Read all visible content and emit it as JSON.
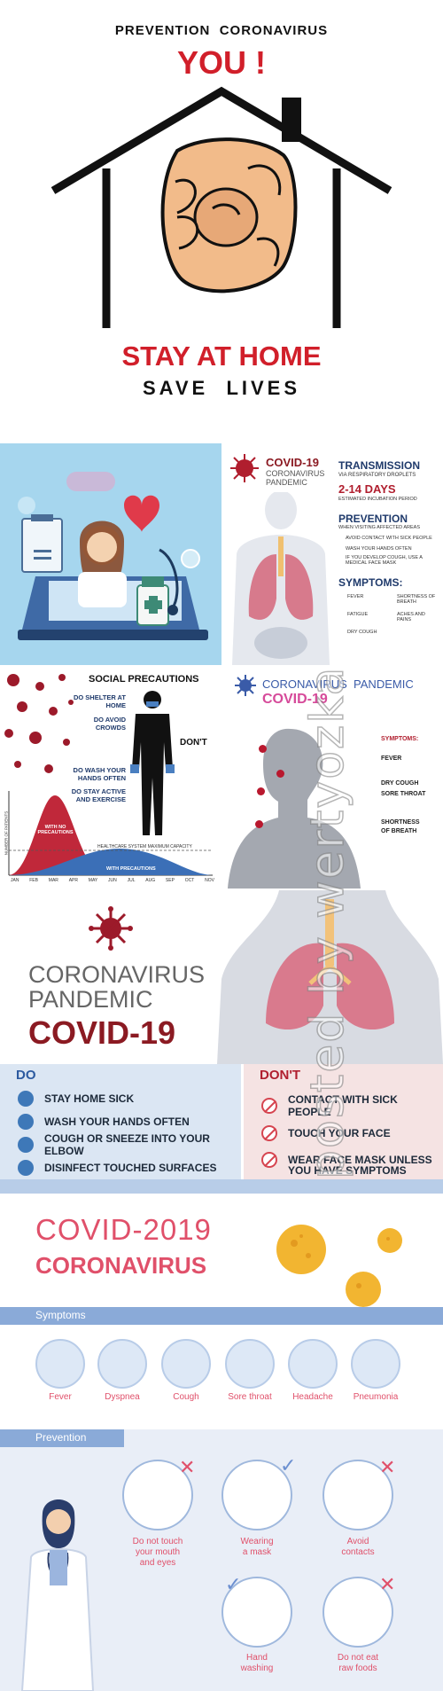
{
  "poster1": {
    "heading": "PREVENTION  CORONAVIRUS",
    "you": "YOU !",
    "stay": "STAY AT HOME",
    "save": "SAVE  LIVES"
  },
  "covid_card": {
    "title": "COVID-19",
    "subtitle1": "CORONAVIRUS",
    "subtitle2": "PANDEMIC",
    "transmission": "TRANSMISSION",
    "transmission_sub": "VIA RESPIRATORY DROPLETS",
    "days": "2-14 DAYS",
    "days_sub": "ESTIMATED INCUBATION PERIOD",
    "prevention": "PREVENTION",
    "prevention_sub": "WHEN VISITING AFFECTED AREAS",
    "prev_items": [
      "AVOID CONTACT WITH SICK PEOPLE",
      "WASH YOUR HANDS OFTEN",
      "IF YOU DEVELOP COUGH, USE A MEDICAL FACE MASK"
    ],
    "symptoms": "SYMPTOMS:",
    "sym_items": [
      "FEVER",
      "SHORTNESS OF BREATH",
      "FATIGUE",
      "ACHES AND PAINS",
      "DRY COUGH"
    ]
  },
  "social": {
    "title": "SOCIAL PRECAUTIONS",
    "do1": "DO SHELTER AT HOME",
    "do2": "DO AVOID CROWDS",
    "do3": "DO WASH YOUR HANDS OFTEN",
    "do4": "DO STAY ACTIVE AND EXERCISE",
    "dont": "DON'T",
    "no_prec": "WITH NO PRECAUTIONS",
    "with_prec": "WITH PRECAUTIONS",
    "capacity": "HEALTHCARE SYSTEM MAXIMUM CAPACITY",
    "ylabel": "NUMBER OF PATIENTS",
    "months": [
      "JAN",
      "FEB",
      "MAR",
      "APR",
      "MAY",
      "JUN",
      "JUL",
      "AUG",
      "SEP",
      "OCT",
      "NOV"
    ]
  },
  "pandemic_card": {
    "title1": "CORONAVIRUS  PANDEMIC",
    "title2": "COVID-19",
    "symptoms": "SYMPTOMS:",
    "fever": "FEVER",
    "dry_cough": "DRY COUGH",
    "sore_throat": "SORE THROAT",
    "shortness": "SHORTNESS",
    "of_breath": "OF BREATH"
  },
  "lungs_card": {
    "line1": "CORONAVIRUS",
    "line2": "PANDEMIC",
    "line3": "COVID-19"
  },
  "dos": {
    "do_title": "DO",
    "dont_title": "DON'T",
    "do_items": [
      "STAY HOME SICK",
      "WASH YOUR HANDS OFTEN",
      "COUGH OR SNEEZE INTO YOUR ELBOW",
      "DISINFECT  TOUCHED SURFACES"
    ],
    "dont_items": [
      "CONTACT  WITH SICK PEOPLE",
      "TOUCH YOUR FACE",
      "WEAR FACE MASK UNLESS",
      "YOU  HAVE SYMPTOMS"
    ]
  },
  "covid2019": {
    "title": "COVID-2019",
    "subtitle": "CORONAVIRUS",
    "symptoms_band": "Symptoms",
    "symptoms": [
      "Fever",
      "Dyspnea",
      "Cough",
      "Sore throat",
      "Headache",
      "Pneumonia"
    ],
    "prevention_band": "Prevention",
    "prevention": [
      {
        "l1": "Do not touch",
        "l2": "your mouth",
        "l3": "and eyes"
      },
      {
        "l1": "Wearing",
        "l2": "a mask",
        "l3": ""
      },
      {
        "l1": "Avoid",
        "l2": "contacts",
        "l3": ""
      },
      {
        "l1": "Hand",
        "l2": "washing",
        "l3": ""
      },
      {
        "l1": "Do not eat",
        "l2": "raw foods",
        "l3": ""
      }
    ]
  },
  "watermark": "posted by wertyozka",
  "colors": {
    "red": "#d11f2a",
    "dark_red": "#8b1a22",
    "navy": "#1f3a6b",
    "pink": "#e0506a",
    "band_blue": "#7a9fd6"
  }
}
